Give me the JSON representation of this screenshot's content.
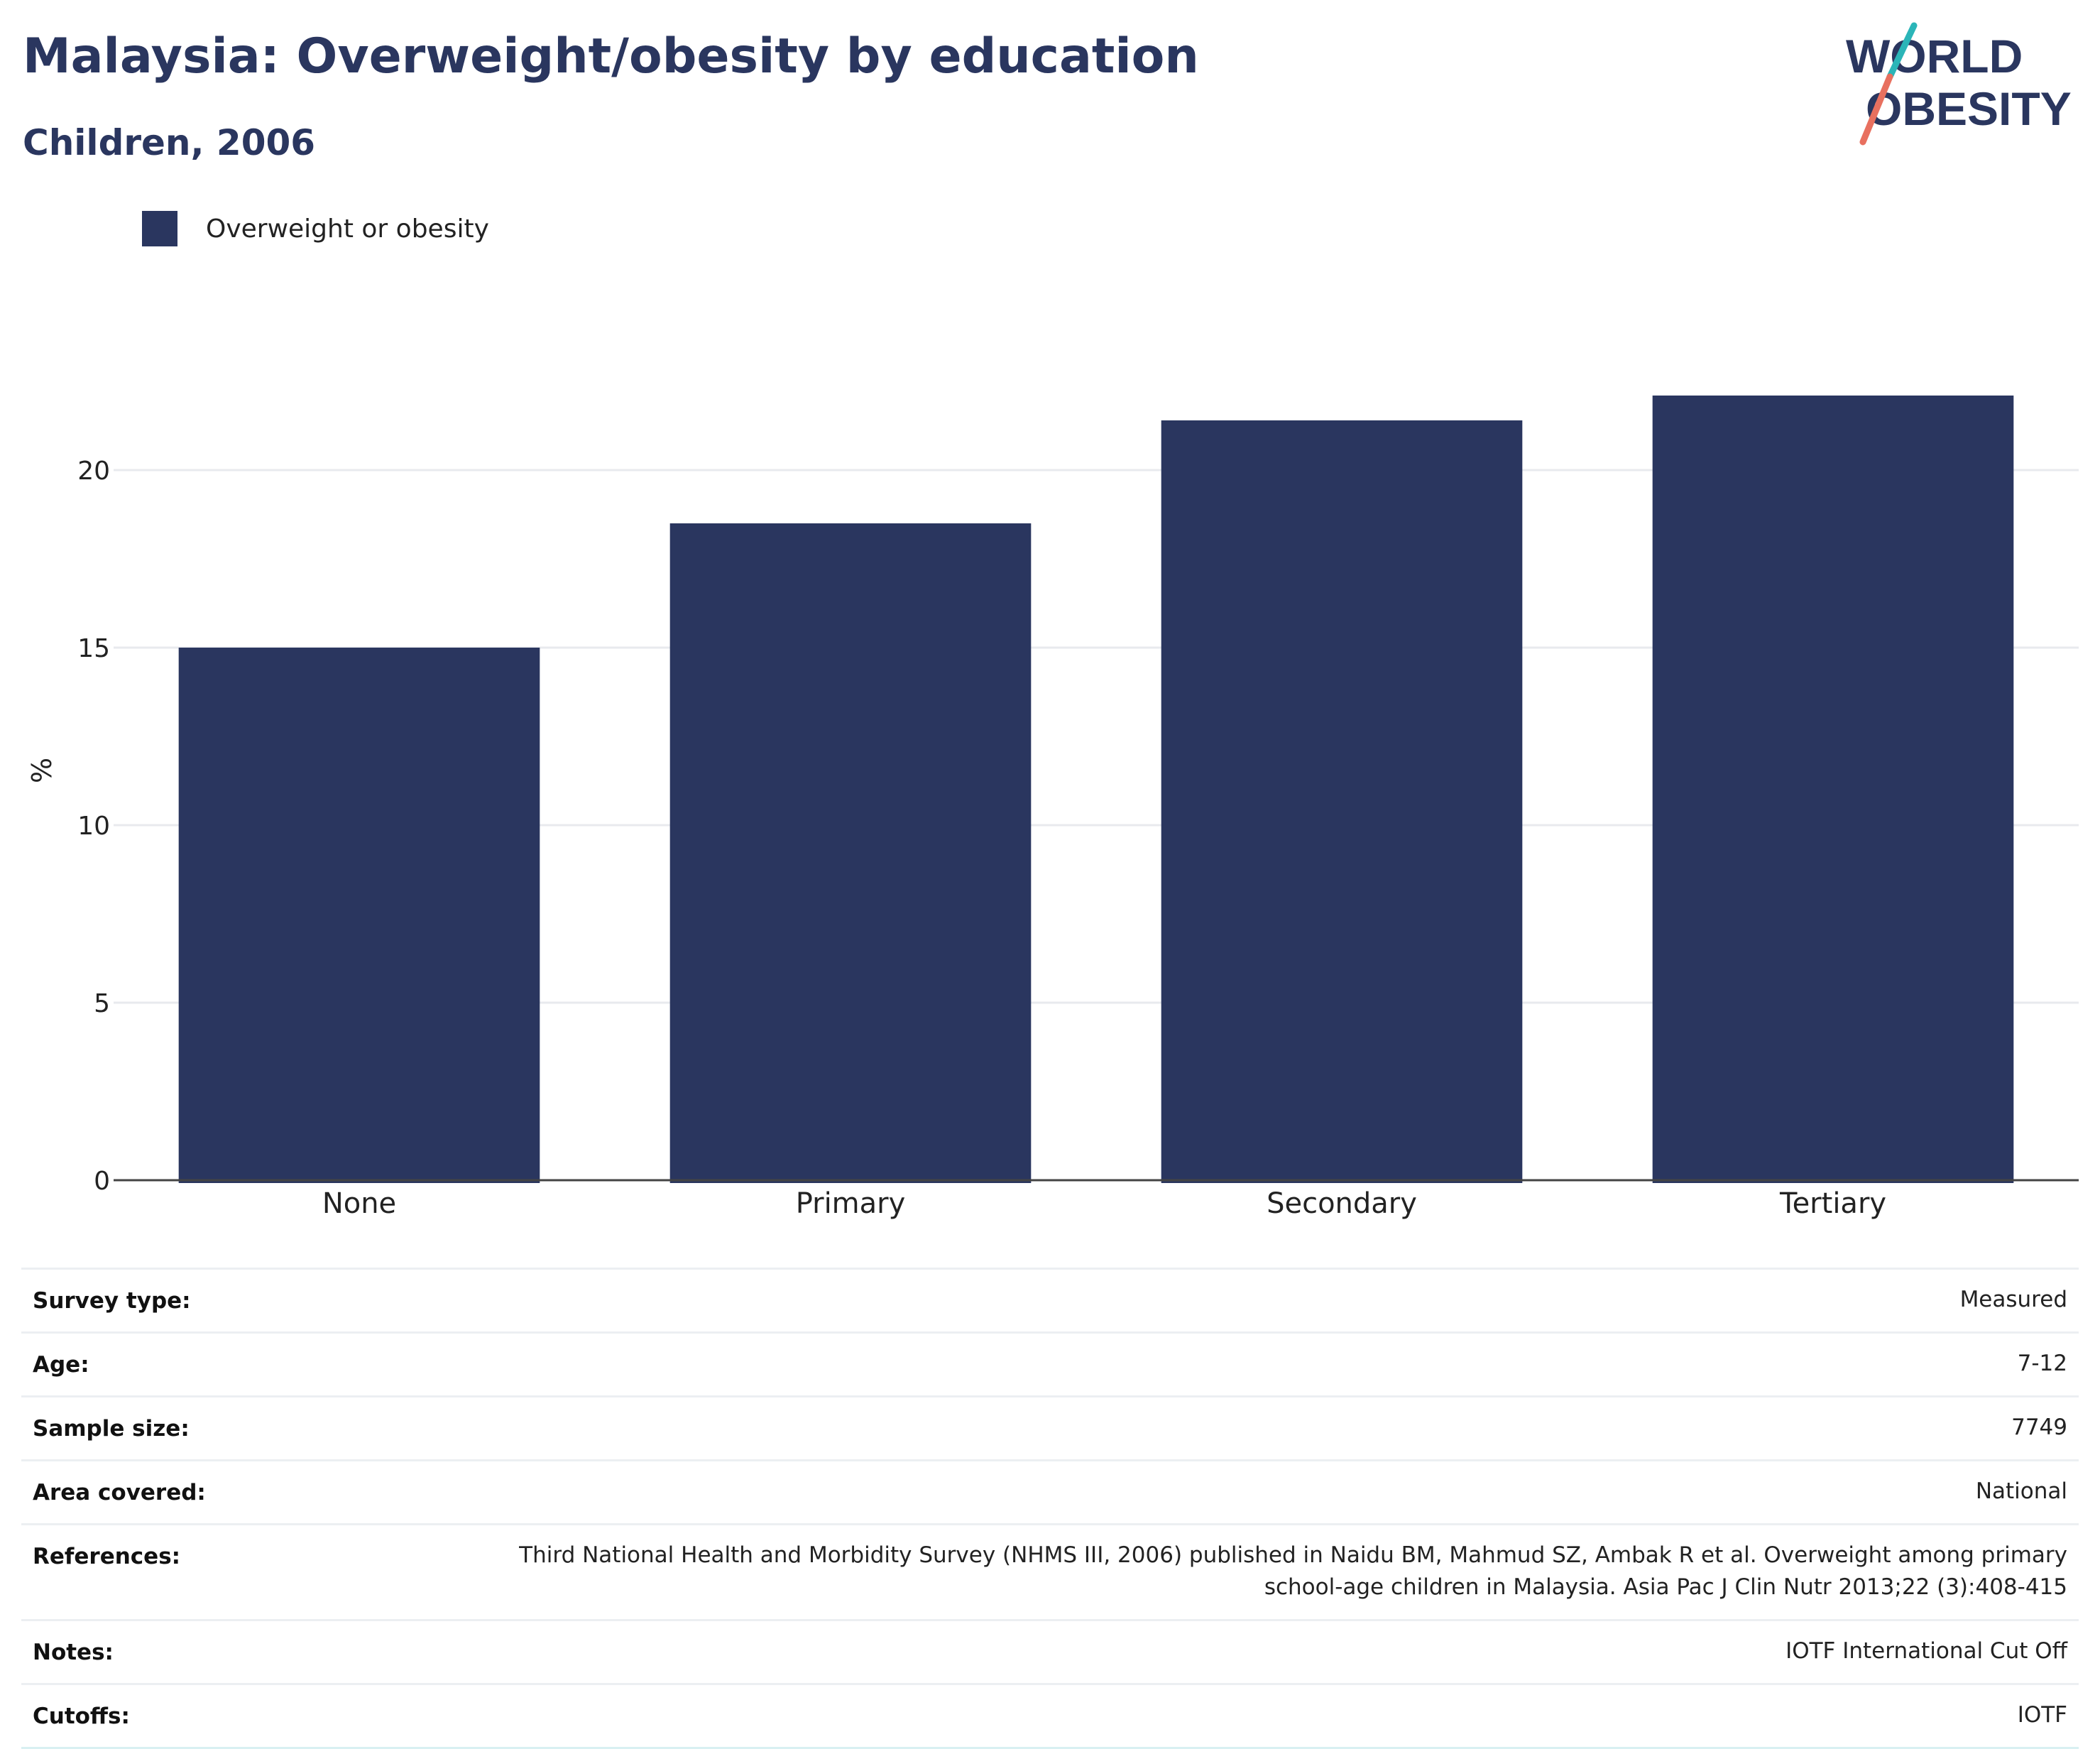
{
  "header": {
    "title": "Malaysia: Overweight/obesity by education",
    "subtitle": "Children, 2006"
  },
  "logo": {
    "line1": "WORLD",
    "line2": "OBESITY",
    "colors": {
      "text": "#2a365f",
      "teal": "#2bb5b8",
      "coral": "#e8705f"
    }
  },
  "legend": {
    "label": "Overweight or obesity",
    "color": "#2a365f"
  },
  "chart_data": {
    "type": "bar",
    "categories": [
      "None",
      "Primary",
      "Secondary",
      "Tertiary"
    ],
    "series": [
      {
        "name": "Overweight or obesity",
        "values": [
          15.0,
          18.5,
          21.4,
          22.1
        ],
        "color": "#2a365f"
      }
    ],
    "ylabel": "%",
    "ylim": [
      0,
      22.5
    ],
    "yticks": [
      0,
      5,
      10,
      15,
      20
    ],
    "grid": true
  },
  "info": [
    {
      "label": "Survey type:",
      "value": "Measured"
    },
    {
      "label": "Age:",
      "value": "7-12"
    },
    {
      "label": "Sample size:",
      "value": "7749"
    },
    {
      "label": "Area covered:",
      "value": "National"
    },
    {
      "label": "References:",
      "value": "Third National Health and Morbidity Survey (NHMS III, 2006) published in Naidu BM, Mahmud SZ, Ambak R et al. Overweight among primary school-age children in Malaysia. Asia Pac J Clin Nutr 2013;22 (3):408-415"
    },
    {
      "label": "Notes:",
      "value": "IOTF International Cut Off"
    },
    {
      "label": "Cutoffs:",
      "value": "IOTF"
    }
  ]
}
